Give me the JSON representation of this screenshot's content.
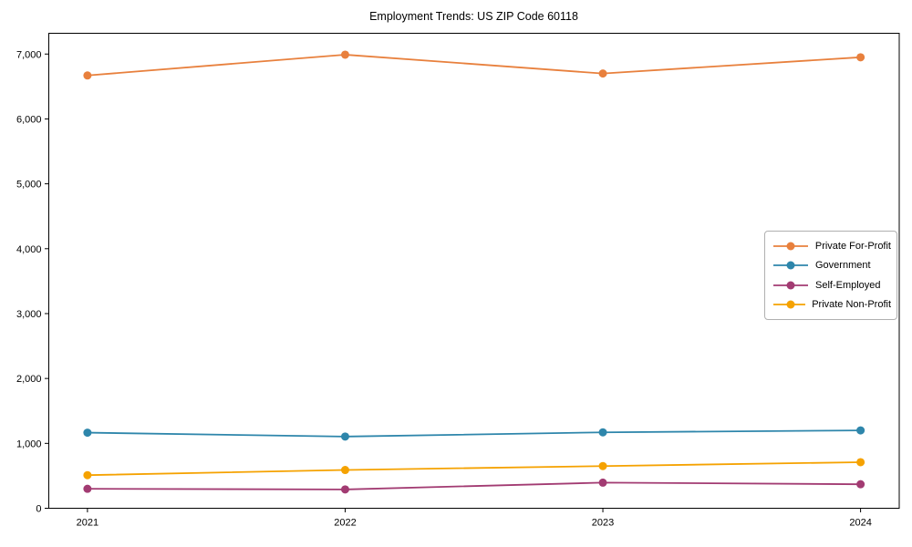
{
  "title": "Employment Trends: US ZIP Code 60118",
  "chart_data": {
    "type": "line",
    "x": [
      2021,
      2022,
      2023,
      2024
    ],
    "xtick_labels": [
      "2021",
      "2022",
      "2023",
      "2024"
    ],
    "series": [
      {
        "name": "Private For-Profit",
        "color": "#E8803D",
        "values": [
          6670,
          6990,
          6700,
          6950
        ]
      },
      {
        "name": "Government",
        "color": "#2E86AB",
        "values": [
          1165,
          1105,
          1170,
          1200
        ]
      },
      {
        "name": "Self-Employed",
        "color": "#A23B72",
        "values": [
          300,
          290,
          395,
          370
        ]
      },
      {
        "name": "Private Non-Profit",
        "color": "#F5A201",
        "values": [
          510,
          590,
          650,
          710
        ]
      }
    ],
    "xlim": [
      2020.85,
      2024.15
    ],
    "ylim": [
      0,
      7320
    ],
    "yticks": [
      0,
      1000,
      2000,
      3000,
      4000,
      5000,
      6000,
      7000
    ],
    "ytick_labels": [
      "0",
      "1,000",
      "2,000",
      "3,000",
      "4,000",
      "5,000",
      "6,000",
      "7,000"
    ],
    "grid": false,
    "legend_position": "center-right",
    "xlabel": "",
    "ylabel": ""
  }
}
